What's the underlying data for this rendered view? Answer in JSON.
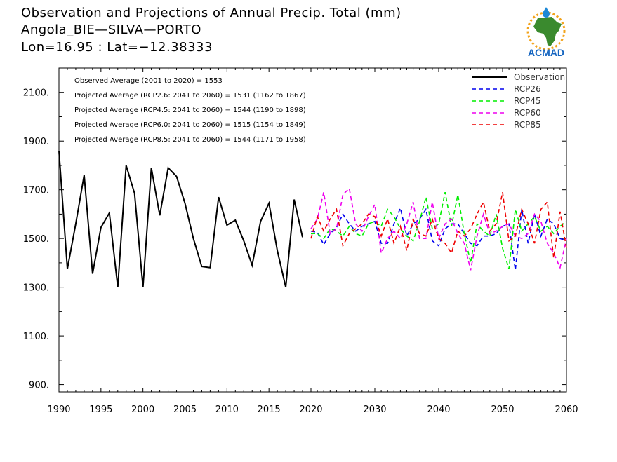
{
  "title": {
    "line1": "Observation and Projections of Annual Precip. Total (mm)",
    "line2": "Angola_BIE—SILVA—PORTO",
    "line3": "Lon=16.95 : Lat=−12.38333"
  },
  "logo": {
    "text": "ACMAD",
    "colors": {
      "africa": "#3a8a2e",
      "sun": "#f2a31b",
      "drop": "#1e88d6",
      "text": "#1565c0"
    }
  },
  "stats": [
    "Observed Average (2001 to 2020) = 1553",
    "Projected Average (RCP2.6: 2041 to 2060) = 1531 (1162 to 1867)",
    "Projected Average (RCP4.5: 2041 to 2060) = 1544 (1190 to 1898)",
    "Projected Average (RCP6.0: 2041 to 2060) = 1515 (1154 to 1849)",
    "Projected Average (RCP8.5: 2041 to 2060) = 1544 (1171 to 1958)"
  ],
  "chart_data": {
    "type": "line",
    "xlim": [
      1990,
      2060
    ],
    "ylim": [
      870,
      2200
    ],
    "x_ticks_left": [
      1990,
      1995,
      2000,
      2005,
      2010,
      2015,
      2020
    ],
    "x_ticks_right": [
      2020,
      2030,
      2040,
      2050,
      2060
    ],
    "y_ticks": [
      900,
      1100,
      1300,
      1500,
      1700,
      1900,
      2100
    ],
    "y_tick_labels": [
      "900.",
      "1100.",
      "1300.",
      "1500.",
      "1700.",
      "1900.",
      "2100."
    ],
    "legend_position": "top-right",
    "series": [
      {
        "name": "Observation",
        "color": "#000000",
        "style": "solid",
        "x": [
          1990,
          1991,
          1992,
          1993,
          1994,
          1995,
          1996,
          1997,
          1998,
          1999,
          2000,
          2001,
          2002,
          2003,
          2004,
          2005,
          2006,
          2007,
          2008,
          2009,
          2010,
          2011,
          2012,
          2013,
          2014,
          2015,
          2016,
          2017,
          2018,
          2019
        ],
        "values": [
          1860,
          1375,
          1560,
          1760,
          1355,
          1545,
          1605,
          1300,
          1800,
          1685,
          1300,
          1790,
          1595,
          1790,
          1755,
          1645,
          1500,
          1385,
          1380,
          1670,
          1555,
          1575,
          1490,
          1390,
          1570,
          1645,
          1450,
          1300,
          1660,
          1505
        ]
      },
      {
        "name": "RCP26",
        "color": "#0000ee",
        "style": "dashed",
        "x": [
          2020,
          2021,
          2022,
          2023,
          2024,
          2025,
          2026,
          2027,
          2028,
          2029,
          2030,
          2031,
          2032,
          2033,
          2034,
          2035,
          2036,
          2037,
          2038,
          2039,
          2040,
          2041,
          2042,
          2043,
          2044,
          2045,
          2046,
          2047,
          2048,
          2049,
          2050,
          2051,
          2052,
          2053,
          2054,
          2055,
          2056,
          2057,
          2058,
          2059,
          2060
        ],
        "values": [
          1530,
          1525,
          1475,
          1520,
          1545,
          1600,
          1560,
          1530,
          1550,
          1560,
          1570,
          1480,
          1480,
          1560,
          1625,
          1510,
          1560,
          1580,
          1620,
          1490,
          1470,
          1540,
          1560,
          1560,
          1520,
          1480,
          1470,
          1510,
          1510,
          1520,
          1550,
          1560,
          1370,
          1620,
          1480,
          1600,
          1510,
          1580,
          1560,
          1500,
          1490
        ]
      },
      {
        "name": "RCP45",
        "color": "#00ee00",
        "style": "dashed",
        "x": [
          2020,
          2021,
          2022,
          2023,
          2024,
          2025,
          2026,
          2027,
          2028,
          2029,
          2030,
          2031,
          2032,
          2033,
          2034,
          2035,
          2036,
          2037,
          2038,
          2039,
          2040,
          2041,
          2042,
          2043,
          2044,
          2045,
          2046,
          2047,
          2048,
          2049,
          2050,
          2051,
          2052,
          2053,
          2054,
          2055,
          2056,
          2057,
          2058,
          2059,
          2060
        ],
        "values": [
          1520,
          1520,
          1500,
          1540,
          1530,
          1510,
          1550,
          1520,
          1510,
          1560,
          1570,
          1550,
          1620,
          1590,
          1540,
          1510,
          1490,
          1570,
          1670,
          1540,
          1560,
          1690,
          1550,
          1680,
          1520,
          1400,
          1560,
          1530,
          1510,
          1600,
          1460,
          1375,
          1620,
          1530,
          1560,
          1590,
          1530,
          1550,
          1520,
          1550,
          1570
        ]
      },
      {
        "name": "RCP60",
        "color": "#ee00ee",
        "style": "dashed",
        "x": [
          2020,
          2021,
          2022,
          2023,
          2024,
          2025,
          2026,
          2027,
          2028,
          2029,
          2030,
          2031,
          2032,
          2033,
          2034,
          2035,
          2036,
          2037,
          2038,
          2039,
          2040,
          2041,
          2042,
          2043,
          2044,
          2045,
          2046,
          2047,
          2048,
          2049,
          2050,
          2051,
          2052,
          2053,
          2054,
          2055,
          2056,
          2057,
          2058,
          2059,
          2060
        ],
        "values": [
          1540,
          1580,
          1690,
          1520,
          1540,
          1680,
          1705,
          1560,
          1530,
          1590,
          1640,
          1440,
          1500,
          1530,
          1500,
          1560,
          1650,
          1500,
          1500,
          1650,
          1500,
          1560,
          1580,
          1520,
          1480,
          1370,
          1510,
          1600,
          1520,
          1530,
          1550,
          1560,
          1510,
          1500,
          1520,
          1600,
          1570,
          1480,
          1440,
          1380,
          1500
        ]
      },
      {
        "name": "RCP85",
        "color": "#ee0000",
        "style": "dashed",
        "x": [
          2020,
          2021,
          2022,
          2023,
          2024,
          2025,
          2026,
          2027,
          2028,
          2029,
          2030,
          2031,
          2032,
          2033,
          2034,
          2035,
          2036,
          2037,
          2038,
          2039,
          2040,
          2041,
          2042,
          2043,
          2044,
          2045,
          2046,
          2047,
          2048,
          2049,
          2050,
          2051,
          2052,
          2053,
          2054,
          2055,
          2056,
          2057,
          2058,
          2059,
          2060
        ],
        "values": [
          1500,
          1590,
          1530,
          1580,
          1620,
          1470,
          1520,
          1540,
          1560,
          1600,
          1590,
          1510,
          1580,
          1480,
          1550,
          1450,
          1580,
          1520,
          1510,
          1580,
          1500,
          1480,
          1440,
          1530,
          1510,
          1540,
          1600,
          1650,
          1530,
          1560,
          1690,
          1490,
          1510,
          1620,
          1560,
          1480,
          1620,
          1650,
          1420,
          1610,
          1460
        ]
      }
    ]
  }
}
